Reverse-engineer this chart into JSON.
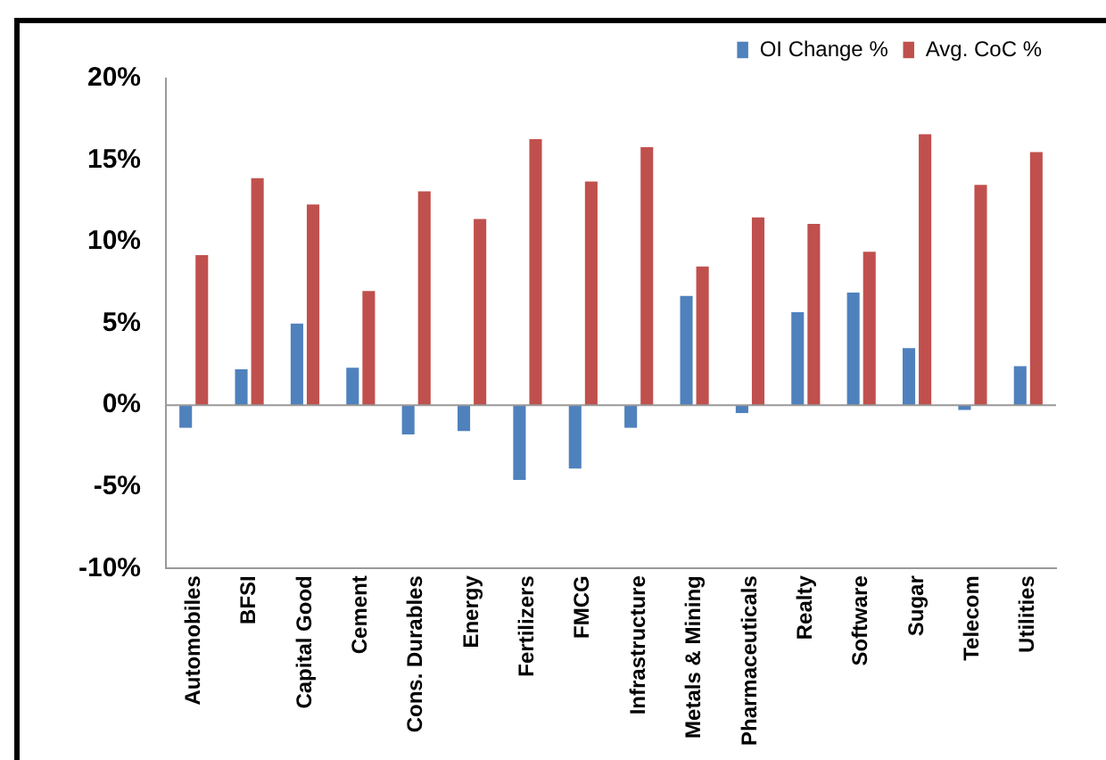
{
  "chart_data": {
    "type": "bar",
    "categories": [
      "Automobiles",
      "BFSI",
      "Capital Good",
      "Cement",
      "Cons. Durables",
      "Energy",
      "Fertilizers",
      "FMCG",
      "Infrastructure",
      "Metals & Mining",
      "Pharmaceuticals",
      "Realty",
      "Software",
      "Sugar",
      "Telecom",
      "Utilities"
    ],
    "series": [
      {
        "name": "OI Change %",
        "color": "#4f81bd",
        "values": [
          -1.4,
          2.3,
          5.1,
          2.4,
          -1.8,
          -1.6,
          -4.6,
          -3.9,
          -1.4,
          6.8,
          -0.5,
          5.8,
          7.0,
          3.6,
          -0.3,
          2.5
        ]
      },
      {
        "name": "Avg. CoC %",
        "color": "#c0504d",
        "values": [
          9.3,
          14.0,
          12.4,
          7.1,
          13.2,
          11.5,
          16.4,
          13.8,
          15.9,
          8.6,
          11.6,
          11.2,
          9.5,
          16.7,
          13.6,
          15.6
        ]
      }
    ],
    "ylim": [
      -10,
      20
    ],
    "yticks": [
      {
        "value": -10,
        "label": "-10%"
      },
      {
        "value": -5,
        "label": "-5%"
      },
      {
        "value": 0,
        "label": "0%"
      },
      {
        "value": 5,
        "label": "5%"
      },
      {
        "value": 10,
        "label": "10%"
      },
      {
        "value": 15,
        "label": "15%"
      },
      {
        "value": 20,
        "label": "20%"
      }
    ],
    "grid": false,
    "ref_lines": [
      {
        "axis": "y",
        "value": 0,
        "color": "#999999"
      }
    ],
    "legend": "top right"
  }
}
